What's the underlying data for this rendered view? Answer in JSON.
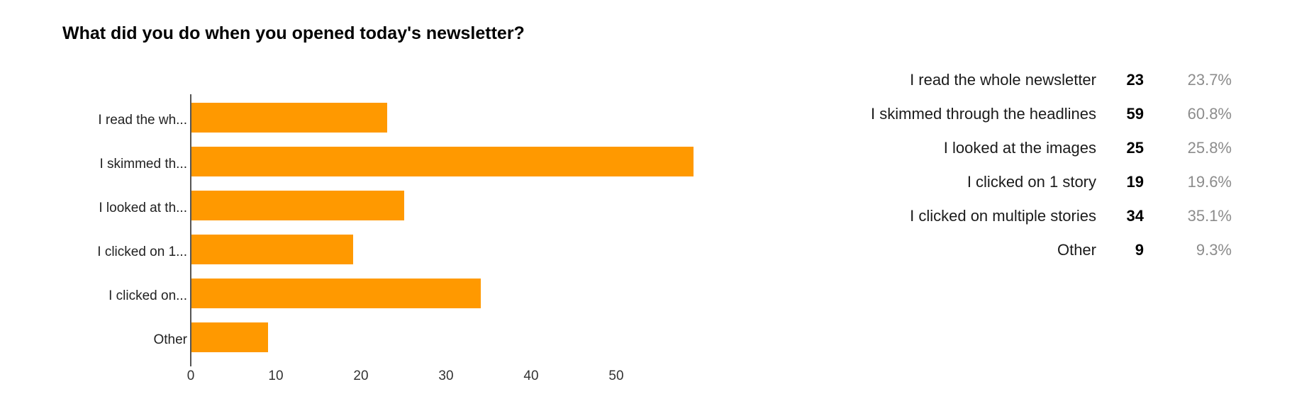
{
  "page": {
    "background_color": "#ffffff"
  },
  "chart_data": {
    "type": "bar",
    "orientation": "horizontal",
    "title": "What did you do when you opened today's newsletter?",
    "categories": [
      "I read the whole newsletter",
      "I skimmed through the headlines",
      "I looked at the images",
      "I clicked on 1 story",
      "I clicked on multiple stories",
      "Other"
    ],
    "categories_truncated": [
      "I read the wh...",
      "I skimmed th...",
      "I looked at th...",
      "I clicked on 1...",
      "I clicked on...",
      "Other"
    ],
    "values": [
      23,
      59,
      25,
      19,
      34,
      9
    ],
    "percents": [
      "23.7%",
      "60.8%",
      "25.8%",
      "19.6%",
      "35.1%",
      "9.3%"
    ],
    "x_ticks": [
      "0",
      "10",
      "20",
      "30",
      "40",
      "50"
    ],
    "x_tick_values": [
      0,
      10,
      20,
      30,
      40,
      50
    ],
    "xlim": [
      0,
      60
    ],
    "bar_color": "#FF9900",
    "axis_color": "#555555",
    "grid": false,
    "legend_position": "right-table"
  },
  "summary_table": {
    "rows": [
      {
        "label": "I read the whole newsletter",
        "count": "23",
        "percent": "23.7%"
      },
      {
        "label": "I skimmed through the headlines",
        "count": "59",
        "percent": "60.8%"
      },
      {
        "label": "I looked at the images",
        "count": "25",
        "percent": "25.8%"
      },
      {
        "label": "I clicked on 1 story",
        "count": "19",
        "percent": "19.6%"
      },
      {
        "label": "I clicked on multiple stories",
        "count": "34",
        "percent": "35.1%"
      },
      {
        "label": "Other",
        "count": "9",
        "percent": "9.3%"
      }
    ]
  }
}
